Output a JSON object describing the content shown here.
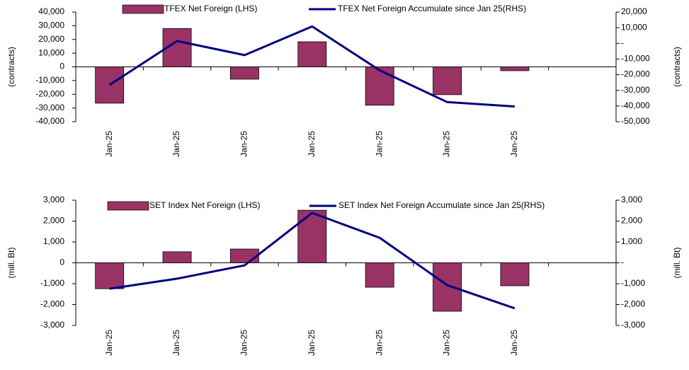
{
  "chart_data": [
    {
      "type": "combo",
      "y_label": "(contracts)",
      "y2_label": "(contracts)",
      "categories": [
        "Jan-25",
        "Jan-25",
        "Jan-25",
        "Jan-25",
        "Jan-25",
        "Jan-25",
        "Jan-25",
        null
      ],
      "series": [
        {
          "name": "TFEX Net Foreign (LHS)",
          "type": "bar",
          "color": "#993366",
          "values": [
            -26500,
            28000,
            -9000,
            18300,
            -28000,
            -20300,
            -2800,
            null
          ]
        },
        {
          "name": "TFEX Net Foreign Accumulate since Jan 25(RHS)",
          "type": "line",
          "axis": "y2",
          "color": "#000080",
          "values": [
            -26500,
            1500,
            -7500,
            10800,
            -17200,
            -37500,
            -40300,
            null
          ]
        }
      ],
      "ylim": [
        -40000,
        40000
      ],
      "yticks": [
        {
          "value": -40000,
          "label": "-40,000"
        },
        {
          "value": -30000,
          "label": "-30,000"
        },
        {
          "value": -20000,
          "label": "-20,000"
        },
        {
          "value": -10000,
          "label": "-10,000"
        },
        0,
        {
          "value": 10000,
          "label": "10,000"
        },
        {
          "value": 20000,
          "label": "20,000"
        },
        {
          "value": 30000,
          "label": "30,000"
        },
        {
          "value": 40000,
          "label": "40,000"
        }
      ],
      "y2lim": [
        -50000,
        20000
      ],
      "y2ticks": [
        {
          "value": -50000,
          "label": "-50,000"
        },
        {
          "value": -40000,
          "label": "-40,000"
        },
        {
          "value": -30000,
          "label": "-30,000"
        },
        {
          "value": -20000,
          "label": "-20,000"
        },
        {
          "value": -10000,
          "label": "-10,000"
        },
        {
          "value": 0,
          "label": "-"
        },
        {
          "value": 10000,
          "label": "10,000"
        },
        {
          "value": 20000,
          "label": "20,000"
        }
      ]
    },
    {
      "type": "combo",
      "y_label": "(mill. Bt)",
      "y2_label": "(mill. Bt)",
      "categories": [
        "Jan-25",
        "Jan-25",
        "Jan-25",
        "Jan-25",
        "Jan-25",
        "Jan-25",
        "Jan-25",
        null
      ],
      "series": [
        {
          "name": "SET Index Net Foreign (LHS)",
          "type": "bar",
          "color": "#993366",
          "values": [
            -1240,
            530,
            660,
            2520,
            -1170,
            -2320,
            -1100,
            null
          ]
        },
        {
          "name": "SET Index Net Foreign Accumulate since Jan 25(RHS)",
          "type": "line",
          "axis": "y2",
          "color": "#000080",
          "values": [
            -1240,
            -760,
            -120,
            2390,
            1200,
            -1070,
            -2180,
            null
          ]
        }
      ],
      "ylim": [
        -3000,
        3000
      ],
      "yticks": [
        {
          "value": -3000,
          "label": "-3,000"
        },
        {
          "value": -2000,
          "label": "-2,000"
        },
        {
          "value": -1000,
          "label": "-1,000"
        },
        0,
        {
          "value": 1000,
          "label": "1,000"
        },
        {
          "value": 2000,
          "label": "2,000"
        },
        {
          "value": 3000,
          "label": "3,000"
        }
      ],
      "y2lim": [
        -3000,
        3000
      ],
      "y2ticks": [
        {
          "value": -3000,
          "label": "-3,000"
        },
        {
          "value": -2000,
          "label": "-2,000"
        },
        {
          "value": -1000,
          "label": "-1,000"
        },
        {
          "value": 0,
          "label": "-"
        },
        {
          "value": 1000,
          "label": "1,000"
        },
        {
          "value": 2000,
          "label": "2,000"
        },
        {
          "value": 3000,
          "label": "3,000"
        }
      ]
    }
  ]
}
